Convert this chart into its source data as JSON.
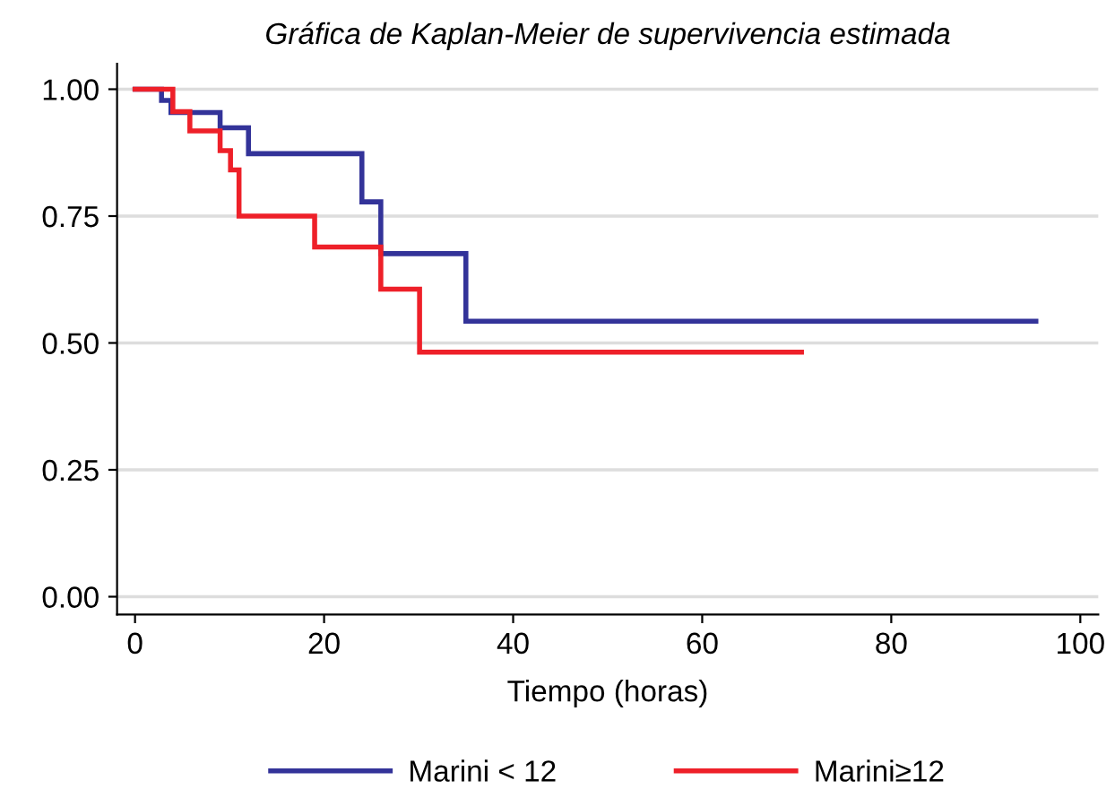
{
  "chart_data": {
    "type": "step",
    "title": "Gráfica de Kaplan-Meier de supervivencia estimada",
    "xlabel": "Tiempo (horas)",
    "series": [
      {
        "name": "Marini < 12",
        "color": "#333399",
        "x": [
          0,
          2.8,
          3.8,
          9,
          12,
          24,
          26,
          35,
          95.3
        ],
        "values": [
          1.0,
          0.978,
          0.954,
          0.924,
          0.873,
          0.778,
          0.676,
          0.543,
          0.543
        ]
      },
      {
        "name": "Marini≥12",
        "color": "#ee2029",
        "x": [
          0,
          4,
          5.8,
          9,
          10.1,
          11,
          19,
          26,
          30.1,
          70.5
        ],
        "values": [
          1.0,
          0.956,
          0.918,
          0.879,
          0.841,
          0.75,
          0.689,
          0.606,
          0.482,
          0.482
        ]
      }
    ],
    "xlim": [
      -1.9,
      101.9
    ],
    "xticks": [
      0,
      20,
      40,
      60,
      80,
      100
    ],
    "ylim": [
      -0.035,
      1.05
    ],
    "yticks": [
      {
        "value": 0,
        "label": "0.00"
      },
      {
        "value": 0.25,
        "label": "0.25"
      },
      {
        "value": 0.5,
        "label": "0.50"
      },
      {
        "value": 0.75,
        "label": "0.75"
      },
      {
        "value": 1,
        "label": "1.00"
      }
    ],
    "grid": "y",
    "legend": "bottom"
  }
}
